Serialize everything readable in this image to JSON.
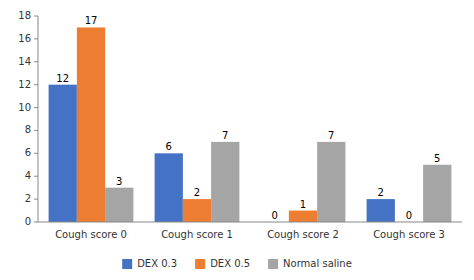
{
  "chart_data": {
    "type": "bar",
    "categories": [
      "Cough score 0",
      "Cough score 1",
      "Cough score 2",
      "Cough score 3"
    ],
    "series": [
      {
        "name": "DEX 0.3",
        "color": "#4472C4",
        "values": [
          12,
          6,
          0,
          2
        ]
      },
      {
        "name": "DEX 0.5",
        "color": "#ED7D31",
        "values": [
          17,
          2,
          1,
          0
        ]
      },
      {
        "name": "Normal saline",
        "color": "#A5A5A5",
        "values": [
          3,
          7,
          7,
          5
        ]
      }
    ],
    "ylim": [
      0,
      18
    ],
    "yticks": [
      0,
      2,
      4,
      6,
      8,
      10,
      12,
      14,
      16,
      18
    ],
    "grid": false,
    "legend": "bottom",
    "data_labels": true
  }
}
